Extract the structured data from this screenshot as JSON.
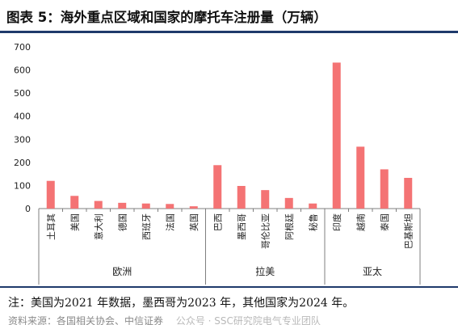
{
  "title": "图表 5：海外重点区域和国家的摩托车注册量（万辆）",
  "note": "注：美国为2021 年数据，墨西哥为2023 年，其他国家为2024 年。",
  "source": "资料来源：各国相关协会、中信证券",
  "watermark": "公众号 · SSC研究院电气专业团队",
  "colors": {
    "bar": "#f47374",
    "axis": "#7f7f7f",
    "rule": "#1f3a6b"
  },
  "chart_data": {
    "type": "bar",
    "yticks": [
      "700",
      "600",
      "500",
      "400",
      "300",
      "200",
      "100",
      "0"
    ],
    "ylim": [
      0,
      700
    ],
    "categories": [
      "土耳其",
      "美国",
      "意大利",
      "德国",
      "西班牙",
      "法国",
      "英国",
      "巴西",
      "墨西哥",
      "哥伦比亚",
      "阿根廷",
      "秘鲁",
      "印度",
      "越南",
      "泰国",
      "巴基斯坦"
    ],
    "values": [
      120,
      55,
      33,
      25,
      22,
      20,
      10,
      188,
      98,
      80,
      46,
      22,
      632,
      268,
      170,
      133
    ],
    "groups": [
      {
        "name": "欧洲",
        "count": 7
      },
      {
        "name": "拉美",
        "count": 5
      },
      {
        "name": "亚太",
        "count": 4
      }
    ]
  }
}
